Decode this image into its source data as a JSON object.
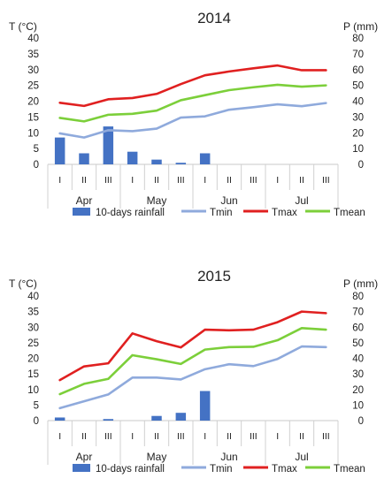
{
  "chart_data": [
    {
      "type": "bar+line",
      "title": "2014",
      "ylabel_left": "T (°C)",
      "ylabel_right": "P (mm)",
      "ylim_left": [
        0,
        40
      ],
      "ylim_right": [
        0,
        80
      ],
      "yticks_left": [
        "0",
        "5",
        "10",
        "15",
        "20",
        "25",
        "30",
        "35",
        "40"
      ],
      "yticks_right": [
        "0",
        "10",
        "20",
        "30",
        "40",
        "50",
        "60",
        "70",
        "80"
      ],
      "categories": [
        "I",
        "II",
        "III",
        "I",
        "II",
        "III",
        "I",
        "II",
        "III",
        "I",
        "II",
        "III"
      ],
      "months": [
        "Apr",
        "May",
        "Jun",
        "Jul"
      ],
      "legend_position": "bottom",
      "rainfall": {
        "name": "10-days rainfall",
        "color": "#4472c4",
        "axis": "right",
        "values": [
          17,
          7,
          24,
          8,
          3,
          1,
          7,
          0,
          0,
          0,
          0,
          0
        ]
      },
      "series": [
        {
          "name": "Tmin",
          "color": "#8faadc",
          "axis": "left",
          "values": [
            9.8,
            8.5,
            10.8,
            10.5,
            11.3,
            14.8,
            15.2,
            17.3,
            18.1,
            19.0,
            18.4,
            19.4
          ]
        },
        {
          "name": "Tmax",
          "color": "#e02020",
          "axis": "left",
          "values": [
            19.5,
            18.5,
            20.6,
            21.0,
            22.3,
            25.4,
            28.2,
            29.4,
            30.4,
            31.3,
            29.8,
            29.8
          ]
        },
        {
          "name": "Tmean",
          "color": "#7ccf3a",
          "axis": "left",
          "values": [
            14.7,
            13.6,
            15.7,
            16.0,
            17.0,
            20.3,
            21.9,
            23.5,
            24.4,
            25.2,
            24.6,
            25.0
          ]
        }
      ]
    },
    {
      "type": "bar+line",
      "title": "2015",
      "ylabel_left": "T (°C)",
      "ylabel_right": "P (mm)",
      "ylim_left": [
        0,
        40
      ],
      "ylim_right": [
        0,
        80
      ],
      "yticks_left": [
        "0",
        "5",
        "10",
        "15",
        "20",
        "25",
        "30",
        "35",
        "40"
      ],
      "yticks_right": [
        "0",
        "10",
        "20",
        "30",
        "40",
        "50",
        "60",
        "70",
        "80"
      ],
      "categories": [
        "I",
        "II",
        "III",
        "I",
        "II",
        "III",
        "I",
        "II",
        "III",
        "I",
        "II",
        "III"
      ],
      "months": [
        "Apr",
        "May",
        "Jun",
        "Jul"
      ],
      "legend_position": "bottom",
      "rainfall": {
        "name": "10-days rainfall",
        "color": "#4472c4",
        "axis": "right",
        "values": [
          2,
          0,
          1,
          0,
          3,
          5,
          19,
          0,
          0,
          0,
          0,
          0
        ]
      },
      "series": [
        {
          "name": "Tmin",
          "color": "#8faadc",
          "axis": "left",
          "values": [
            4.0,
            6.2,
            8.4,
            13.8,
            13.8,
            13.2,
            16.5,
            18.1,
            17.5,
            19.8,
            23.8,
            23.6
          ]
        },
        {
          "name": "Tmax",
          "color": "#e02020",
          "axis": "left",
          "values": [
            13.0,
            17.4,
            18.4,
            28.0,
            25.5,
            23.5,
            29.2,
            29.0,
            29.2,
            31.6,
            35.0,
            34.5
          ]
        },
        {
          "name": "Tmean",
          "color": "#7ccf3a",
          "axis": "left",
          "values": [
            8.5,
            11.8,
            13.4,
            21.0,
            19.7,
            18.2,
            22.8,
            23.6,
            23.7,
            25.8,
            29.7,
            29.2
          ]
        }
      ]
    }
  ]
}
